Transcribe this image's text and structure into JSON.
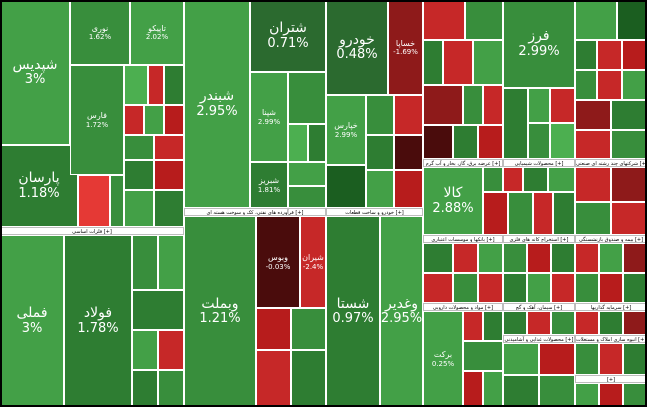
{
  "colors": {
    "g1": "#2e7d32",
    "g2": "#388e3c",
    "g3": "#43a047",
    "g4": "#4caf50",
    "g5": "#1b5e20",
    "gd": "#2b6a2f",
    "r1": "#c62828",
    "r2": "#b71c1c",
    "r3": "#8e1a1a",
    "rd": "#4a0c0c",
    "ry": "#e53935"
  },
  "tiles": [
    {
      "name": "شپدیس",
      "pct": "3%"
    },
    {
      "name": "نوری",
      "pct": "1.62%"
    },
    {
      "name": "تاپیکو",
      "pct": "2.02%"
    },
    {
      "name": "فارس",
      "pct": "1.72%"
    },
    {
      "name": "پارسان",
      "pct": "1.18%"
    },
    {
      "name": "شبندر",
      "pct": "2.95%"
    },
    {
      "name": "شتران",
      "pct": "0.71%"
    },
    {
      "name": "شپنا",
      "pct": "2.99%"
    },
    {
      "name": "خودرو",
      "pct": "0.48%"
    },
    {
      "name": "خساپا",
      "pct": "-1.69%"
    },
    {
      "name": "خپارس",
      "pct": "2.99%"
    },
    {
      "name": "فرز",
      "pct": "2.99%"
    },
    {
      "name": "کالا",
      "pct": "2.88%"
    },
    {
      "name": "فملی",
      "pct": "3%"
    },
    {
      "name": "فولاد",
      "pct": "1.78%"
    },
    {
      "name": "وبملت",
      "pct": "1.21%"
    },
    {
      "name": "وبوس",
      "pct": "-0.03%"
    },
    {
      "name": "شستا",
      "pct": "0.97%"
    },
    {
      "name": "وغدیر",
      "pct": "2.95%"
    },
    {
      "name": "برکت",
      "pct": "0.25%"
    },
    {
      "name": "شبریز",
      "pct": "1.81%"
    },
    {
      "name": "شیران",
      "pct": "-2.4%"
    }
  ],
  "headers": [
    "فلزات اساسی [+]",
    "فرآورده های نفتی، کک و سوخت هسته ای [+]",
    "خودرو و ساخت قطعات [+]",
    "عرضه برق، گاز، بخار و آب گرم [+]",
    "محصولات شیمیایی [+]",
    "شرکتهای چند رشته ای صنعتی [+]",
    "بانکها و موسسات اعتباری [+]",
    "استخراج کانه های فلزی [+]",
    "بیمه و صندوق بازنشستگی [+]",
    "مواد و محصولات دارویی [+]",
    "سیمان، آهک و گچ [+]",
    "سرمایه گذاریها [+]",
    "محصولات غذایی و آشامیدنی [+]",
    "انبوه سازی املاک و مستغلات [+]",
    "[+]"
  ]
}
